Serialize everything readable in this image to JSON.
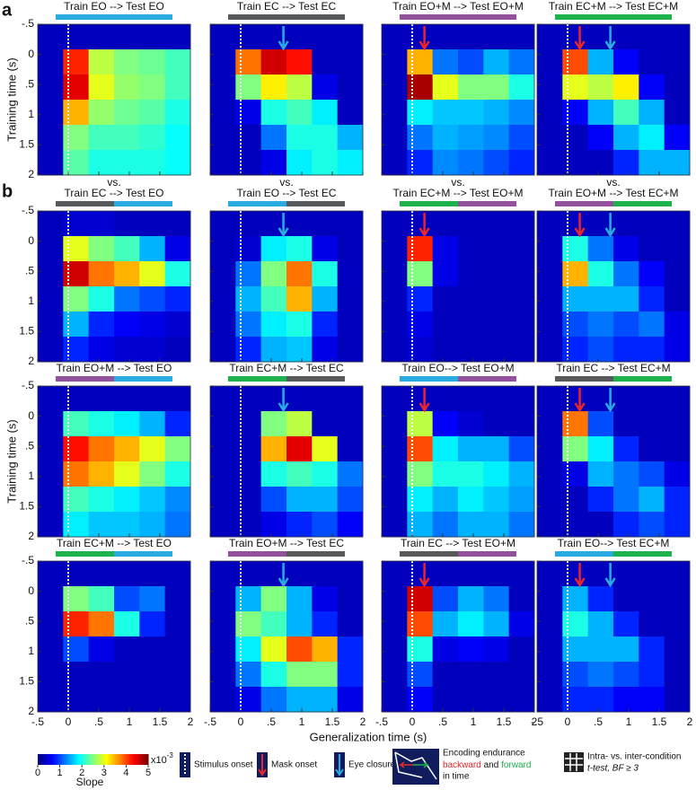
{
  "panel_labels": [
    "a",
    "b"
  ],
  "vs_label": "vs.",
  "y_axis_label": "Training time (s)",
  "x_axis_label": "Generalization time (s)",
  "axes": {
    "xlim": [
      -0.5,
      2
    ],
    "ylim": [
      -0.5,
      2
    ],
    "stimulus_onset": 0,
    "xticks": [
      {
        "value": -0.5,
        "label": "-.5"
      },
      0,
      {
        "value": 0.5,
        "label": ".5"
      },
      1,
      1.5,
      2
    ],
    "yticks": [
      {
        "value": -0.5,
        "label": "-.5"
      },
      0,
      {
        "value": 0.5,
        "label": ".5"
      },
      1,
      1.5,
      2
    ]
  },
  "colorbar": {
    "label": "Slope",
    "clim": [
      0,
      5
    ],
    "ticks": [
      0,
      1,
      2,
      3,
      4,
      5
    ],
    "scale_base": "x10",
    "scale_exp": "-3"
  },
  "legend": {
    "stimulus_onset": "Stimulus onset",
    "mask_onset": "Mask onset",
    "eye_closure": "Eye closure",
    "endurance_1": "Encoding endurance",
    "endurance_backward": "backward",
    "endurance_and": "and",
    "endurance_forward": "forward",
    "endurance_3": "in time",
    "ttest_1": "Intra- vs. inter-condition",
    "ttest_2": "t-test, BF ≥ 3"
  },
  "chart_data": [
    {
      "type": "heatmap",
      "title": "Train EO --> Test EO",
      "bar_colors": [
        "#29abe2"
      ],
      "arrows": [],
      "values": [
        [
          0.3,
          0.3,
          0.3,
          0.3,
          0.3,
          0.3
        ],
        [
          0.3,
          4.2,
          2.8,
          2.5,
          2.4,
          2.2
        ],
        [
          0.3,
          4.5,
          3.0,
          2.6,
          2.5,
          2.2
        ],
        [
          0.3,
          3.5,
          2.6,
          2.4,
          2.3,
          2.0
        ],
        [
          0.3,
          2.5,
          2.2,
          2.2,
          2.1,
          1.9
        ],
        [
          0.3,
          2.3,
          2.0,
          2.0,
          2.0,
          1.9
        ]
      ]
    },
    {
      "type": "heatmap",
      "title": "Train EC --> Test EC",
      "bar_colors": [
        "#58595b"
      ],
      "arrows": [
        {
          "x": 0.7,
          "color": "#29abe2"
        }
      ],
      "values": [
        [
          0.3,
          0.3,
          0.3,
          0.3,
          0.3,
          0.3
        ],
        [
          0.3,
          3.8,
          4.6,
          4.3,
          0.3,
          0.3
        ],
        [
          0.3,
          2.5,
          3.2,
          2.8,
          0.5,
          0.3
        ],
        [
          0.3,
          0.5,
          2.0,
          2.2,
          1.8,
          0.3
        ],
        [
          0.3,
          0.3,
          1.2,
          2.0,
          2.0,
          1.5
        ],
        [
          0.3,
          0.3,
          0.5,
          1.8,
          2.0,
          1.8
        ]
      ]
    },
    {
      "type": "heatmap",
      "title": "Train EO+M --> Test EO+M",
      "bar_colors": [
        "#93509d"
      ],
      "arrows": [
        {
          "x": 0.2,
          "color": "#e8262b"
        }
      ],
      "values": [
        [
          0.3,
          0.3,
          0.3,
          0.3,
          0.3,
          0.3
        ],
        [
          0.3,
          3.5,
          1.2,
          1.0,
          1.5,
          1.2
        ],
        [
          0.3,
          4.8,
          3.0,
          2.5,
          2.5,
          2.0
        ],
        [
          0.3,
          1.8,
          1.6,
          1.6,
          1.5,
          1.3
        ],
        [
          0.3,
          1.2,
          1.5,
          1.4,
          1.3,
          1.0
        ],
        [
          0.3,
          0.8,
          1.3,
          1.2,
          1.0,
          0.8
        ]
      ]
    },
    {
      "type": "heatmap",
      "title": "Train EC+M --> Test EC+M",
      "bar_colors": [
        "#1db24b"
      ],
      "arrows": [
        {
          "x": 0.2,
          "color": "#e8262b"
        },
        {
          "x": 0.7,
          "color": "#29abe2"
        }
      ],
      "values": [
        [
          0.3,
          0.3,
          0.3,
          0.3,
          0.3,
          0.3
        ],
        [
          0.3,
          4.0,
          1.5,
          0.6,
          0.3,
          0.3
        ],
        [
          0.3,
          3.0,
          2.8,
          3.2,
          0.6,
          0.3
        ],
        [
          0.3,
          0.6,
          1.5,
          2.2,
          1.5,
          0.3
        ],
        [
          0.3,
          0.3,
          0.6,
          1.5,
          1.8,
          0.6
        ],
        [
          0.3,
          0.3,
          0.3,
          0.8,
          1.5,
          1.5
        ]
      ]
    },
    {
      "type": "heatmap",
      "title": "Train EC --> Test EO",
      "bar_colors": [
        "#58595b",
        "#29abe2"
      ],
      "arrows": [],
      "values": [
        [
          0.3,
          0.4,
          0.4,
          0.3,
          0.3,
          0.3
        ],
        [
          0.3,
          3.0,
          2.5,
          2.2,
          1.5,
          0.5
        ],
        [
          0.3,
          4.6,
          3.8,
          3.5,
          3.0,
          2.0
        ],
        [
          0.3,
          2.5,
          2.0,
          1.2,
          1.0,
          0.8
        ],
        [
          0.3,
          1.5,
          0.8,
          0.6,
          0.5,
          0.4
        ],
        [
          0.3,
          0.8,
          0.5,
          0.4,
          0.4,
          0.3
        ]
      ]
    },
    {
      "type": "heatmap",
      "title": "Train EO --> Test EC",
      "bar_colors": [
        "#29abe2",
        "#58595b"
      ],
      "arrows": [
        {
          "x": 0.7,
          "color": "#29abe2"
        }
      ],
      "values": [
        [
          0.3,
          0.3,
          0.3,
          0.3,
          0.3,
          0.3
        ],
        [
          0.3,
          0.4,
          1.8,
          2.0,
          0.5,
          0.3
        ],
        [
          0.3,
          1.2,
          2.5,
          3.8,
          2.0,
          0.3
        ],
        [
          0.3,
          1.5,
          2.2,
          3.5,
          1.5,
          0.3
        ],
        [
          0.3,
          1.2,
          1.8,
          2.0,
          0.8,
          0.3
        ],
        [
          0.3,
          0.8,
          1.5,
          1.6,
          0.5,
          0.3
        ]
      ]
    },
    {
      "type": "heatmap",
      "title": "Train EC+M --> Test EO+M",
      "bar_colors": [
        "#1db24b",
        "#93509d"
      ],
      "arrows": [
        {
          "x": 0.2,
          "color": "#e8262b"
        }
      ],
      "values": [
        [
          0.3,
          0.3,
          0.3,
          0.3,
          0.3,
          0.3
        ],
        [
          0.3,
          4.2,
          0.5,
          0.3,
          0.3,
          0.3
        ],
        [
          0.3,
          2.5,
          0.5,
          0.3,
          0.3,
          0.3
        ],
        [
          0.3,
          0.8,
          0.3,
          0.3,
          0.3,
          0.3
        ],
        [
          0.3,
          0.5,
          0.3,
          0.3,
          0.3,
          0.3
        ],
        [
          0.3,
          0.4,
          0.3,
          0.3,
          0.3,
          0.3
        ]
      ]
    },
    {
      "type": "heatmap",
      "title": "Train EO+M --> Test EC+M",
      "bar_colors": [
        "#93509d",
        "#1db24b"
      ],
      "arrows": [
        {
          "x": 0.2,
          "color": "#e8262b"
        },
        {
          "x": 0.7,
          "color": "#29abe2"
        }
      ],
      "values": [
        [
          0.3,
          0.3,
          0.3,
          0.3,
          0.3,
          0.3
        ],
        [
          0.3,
          2.0,
          1.2,
          0.5,
          0.3,
          0.3
        ],
        [
          0.3,
          3.5,
          2.0,
          1.2,
          0.6,
          0.3
        ],
        [
          0.3,
          1.5,
          1.5,
          1.5,
          0.8,
          0.3
        ],
        [
          0.3,
          1.0,
          1.2,
          1.0,
          1.2,
          0.5
        ],
        [
          0.3,
          0.8,
          1.0,
          0.8,
          0.8,
          0.5
        ]
      ]
    },
    {
      "type": "heatmap",
      "title": "Train EO+M --> Test EO",
      "bar_colors": [
        "#93509d",
        "#29abe2"
      ],
      "arrows": [],
      "values": [
        [
          0.3,
          0.3,
          0.3,
          0.3,
          0.3,
          0.3
        ],
        [
          0.3,
          2.2,
          2.0,
          1.8,
          1.5,
          0.8
        ],
        [
          0.3,
          4.3,
          3.8,
          3.5,
          3.0,
          2.5
        ],
        [
          0.3,
          3.8,
          3.5,
          3.0,
          2.5,
          2.0
        ],
        [
          0.3,
          2.2,
          2.0,
          1.8,
          1.6,
          1.3
        ],
        [
          0.3,
          1.8,
          1.6,
          1.6,
          1.5,
          1.2
        ]
      ]
    },
    {
      "type": "heatmap",
      "title": "Train EC+M --> Test EC",
      "bar_colors": [
        "#1db24b",
        "#58595b"
      ],
      "arrows": [
        {
          "x": 0.7,
          "color": "#29abe2"
        }
      ],
      "values": [
        [
          0.3,
          0.3,
          0.3,
          0.3,
          0.3,
          0.3
        ],
        [
          0.3,
          0.3,
          2.5,
          2.8,
          0.3,
          0.3
        ],
        [
          0.3,
          0.3,
          3.5,
          4.5,
          3.0,
          0.3
        ],
        [
          0.3,
          0.3,
          2.0,
          2.2,
          2.0,
          1.2
        ],
        [
          0.3,
          0.3,
          1.0,
          1.5,
          1.5,
          1.0
        ],
        [
          0.3,
          0.3,
          0.5,
          0.8,
          1.0,
          0.6
        ]
      ]
    },
    {
      "type": "heatmap",
      "title": "Train EO--> Test EO+M",
      "bar_colors": [
        "#29abe2",
        "#93509d"
      ],
      "arrows": [
        {
          "x": 0.2,
          "color": "#e8262b"
        }
      ],
      "values": [
        [
          0.3,
          0.3,
          0.3,
          0.3,
          0.3,
          0.3
        ],
        [
          0.3,
          2.8,
          0.6,
          0.4,
          0.3,
          0.3
        ],
        [
          0.3,
          4.0,
          1.8,
          1.5,
          1.5,
          1.0
        ],
        [
          0.3,
          2.5,
          2.0,
          2.0,
          1.8,
          1.5
        ],
        [
          0.3,
          1.8,
          1.5,
          1.8,
          1.6,
          1.4
        ],
        [
          0.3,
          1.5,
          1.2,
          1.5,
          1.5,
          1.2
        ]
      ]
    },
    {
      "type": "heatmap",
      "title": "Train EC --> Test EC+M",
      "bar_colors": [
        "#58595b",
        "#1db24b"
      ],
      "arrows": [
        {
          "x": 0.2,
          "color": "#e8262b"
        },
        {
          "x": 0.7,
          "color": "#29abe2"
        }
      ],
      "values": [
        [
          0.3,
          0.3,
          0.3,
          0.3,
          0.3,
          0.3
        ],
        [
          0.3,
          3.8,
          1.0,
          0.3,
          0.3,
          0.3
        ],
        [
          0.3,
          2.5,
          1.8,
          0.8,
          0.3,
          0.3
        ],
        [
          0.3,
          0.5,
          1.5,
          1.2,
          1.0,
          0.5
        ],
        [
          0.3,
          0.3,
          0.8,
          1.2,
          1.5,
          0.8
        ],
        [
          0.3,
          0.3,
          0.3,
          0.8,
          1.0,
          0.8
        ]
      ]
    },
    {
      "type": "heatmap",
      "title": "Train EC+M --> Test EO",
      "bar_colors": [
        "#1db24b",
        "#29abe2"
      ],
      "arrows": [],
      "values": [
        [
          0.3,
          0.3,
          0.3,
          0.3,
          0.3,
          0.3
        ],
        [
          0.3,
          2.5,
          2.2,
          1.0,
          1.2,
          0.3
        ],
        [
          0.3,
          4.2,
          3.8,
          2.0,
          0.8,
          0.3
        ],
        [
          0.3,
          1.0,
          0.5,
          0.3,
          0.3,
          0.3
        ],
        [
          0.3,
          0.3,
          0.3,
          0.3,
          0.3,
          0.3
        ],
        [
          0.3,
          0.3,
          0.3,
          0.3,
          0.3,
          0.3
        ]
      ]
    },
    {
      "type": "heatmap",
      "title": "Train EO+M --> Test EC",
      "bar_colors": [
        "#93509d",
        "#58595b"
      ],
      "arrows": [
        {
          "x": 0.7,
          "color": "#29abe2"
        }
      ],
      "values": [
        [
          0.3,
          0.3,
          0.3,
          0.3,
          0.3,
          0.3
        ],
        [
          0.3,
          1.5,
          2.5,
          1.5,
          0.5,
          0.3
        ],
        [
          0.3,
          2.5,
          2.2,
          1.5,
          0.8,
          0.3
        ],
        [
          0.3,
          1.8,
          3.0,
          4.0,
          3.5,
          0.8
        ],
        [
          0.3,
          1.2,
          2.0,
          2.5,
          2.5,
          0.8
        ],
        [
          0.3,
          0.5,
          1.2,
          1.5,
          1.5,
          0.5
        ]
      ]
    },
    {
      "type": "heatmap",
      "title": "Train EC --> Test EO+M",
      "bar_colors": [
        "#58595b",
        "#93509d"
      ],
      "arrows": [
        {
          "x": 0.2,
          "color": "#e8262b"
        }
      ],
      "values": [
        [
          0.3,
          0.3,
          0.3,
          0.3,
          0.3,
          0.3
        ],
        [
          0.3,
          4.6,
          1.0,
          1.5,
          1.2,
          0.3
        ],
        [
          0.3,
          4.0,
          1.5,
          1.8,
          1.5,
          0.5
        ],
        [
          0.3,
          2.0,
          0.5,
          0.6,
          0.5,
          0.3
        ],
        [
          0.3,
          1.0,
          0.3,
          0.3,
          0.3,
          0.3
        ],
        [
          0.3,
          0.6,
          0.3,
          0.3,
          0.3,
          0.3
        ]
      ]
    },
    {
      "type": "heatmap",
      "title": "Train EO--> Test EC+M",
      "bar_colors": [
        "#29abe2",
        "#1db24b"
      ],
      "arrows": [
        {
          "x": 0.2,
          "color": "#e8262b"
        },
        {
          "x": 0.7,
          "color": "#29abe2"
        }
      ],
      "values": [
        [
          0.3,
          0.3,
          0.3,
          0.3,
          0.3,
          0.3
        ],
        [
          0.3,
          1.5,
          0.8,
          0.3,
          0.3,
          0.3
        ],
        [
          0.3,
          2.0,
          1.5,
          0.8,
          0.3,
          0.3
        ],
        [
          0.3,
          1.5,
          1.5,
          1.5,
          0.8,
          0.3
        ],
        [
          0.3,
          1.0,
          1.2,
          1.0,
          0.8,
          0.3
        ],
        [
          0.3,
          0.8,
          0.8,
          0.6,
          0.6,
          0.3
        ]
      ]
    }
  ]
}
